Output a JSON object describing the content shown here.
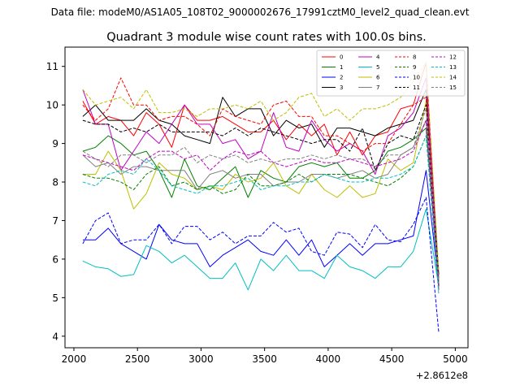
{
  "suptitle": "Data file: modeM0/AS1A05_108T02_9000002676_17991cztM0_level2_quad_clean.evt",
  "chart_data": {
    "type": "line",
    "title": "Quadrant 3 module wise count rates with 100.0s bins.",
    "xlabel": "",
    "ylabel": "",
    "x_offset_label": "+2.8612e8",
    "xlim": [
      1930,
      5100
    ],
    "ylim": [
      3.7,
      11.5
    ],
    "xticks": [
      2000,
      2500,
      3000,
      3500,
      4000,
      4500,
      5000
    ],
    "xtick_labels": [
      "2000",
      "2500",
      "3000",
      "3500",
      "4000",
      "4500",
      "5000"
    ],
    "yticks": [
      4,
      5,
      6,
      7,
      8,
      9,
      10,
      11
    ],
    "ytick_labels": [
      "4",
      "5",
      "6",
      "7",
      "8",
      "9",
      "10",
      "11"
    ],
    "legend_position": "top-right",
    "x": [
      2070,
      2170,
      2270,
      2370,
      2470,
      2570,
      2670,
      2770,
      2870,
      2970,
      3070,
      3170,
      3270,
      3370,
      3470,
      3570,
      3670,
      3770,
      3870,
      3970,
      4070,
      4170,
      4270,
      4370,
      4470,
      4570,
      4670,
      4770,
      4870
    ],
    "series": [
      {
        "name": "0",
        "color": "#ff0000",
        "dash": "solid",
        "values": [
          10.1,
          9.5,
          9.7,
          9.6,
          9.2,
          9.8,
          9.5,
          8.9,
          10.0,
          9.6,
          9.6,
          9.7,
          9.5,
          9.3,
          9.3,
          9.6,
          9.1,
          9.5,
          9.2,
          9.5,
          8.7,
          9.3,
          8.7,
          9.2,
          9.3,
          9.9,
          10.0,
          11.1,
          5.5
        ]
      },
      {
        "name": "1",
        "color": "#008000",
        "dash": "solid",
        "values": [
          8.8,
          8.9,
          9.2,
          9.0,
          8.7,
          8.8,
          8.3,
          7.6,
          8.6,
          7.9,
          7.8,
          8.1,
          8.4,
          7.6,
          8.3,
          8.1,
          8.0,
          8.4,
          8.5,
          8.4,
          8.5,
          8.1,
          8.1,
          8.3,
          8.8,
          8.9,
          9.1,
          9.4,
          5.4
        ]
      },
      {
        "name": "2",
        "color": "#0000ff",
        "dash": "solid",
        "values": [
          6.5,
          6.5,
          6.8,
          6.4,
          6.2,
          6.0,
          6.9,
          6.5,
          6.4,
          6.4,
          5.8,
          6.1,
          6.3,
          6.5,
          6.2,
          6.1,
          6.5,
          6.1,
          6.5,
          5.8,
          6.1,
          6.4,
          6.1,
          6.4,
          6.4,
          6.5,
          6.6,
          8.3,
          5.3
        ]
      },
      {
        "name": "3",
        "color": "#000000",
        "dash": "solid",
        "values": [
          9.7,
          10.0,
          9.6,
          9.6,
          9.6,
          9.9,
          9.6,
          9.5,
          9.2,
          9.1,
          9.0,
          10.2,
          9.7,
          9.9,
          9.9,
          9.2,
          9.6,
          9.4,
          9.5,
          8.9,
          9.4,
          9.4,
          9.3,
          9.2,
          9.4,
          9.5,
          9.6,
          10.4,
          5.6
        ]
      },
      {
        "name": "4",
        "color": "#c000c0",
        "dash": "solid",
        "values": [
          10.4,
          9.5,
          9.5,
          8.3,
          8.8,
          9.3,
          9.0,
          9.5,
          10.0,
          9.5,
          9.5,
          9.0,
          9.1,
          8.6,
          8.8,
          9.8,
          8.9,
          8.8,
          9.6,
          9.1,
          8.8,
          9.0,
          8.8,
          8.2,
          9.2,
          9.4,
          9.8,
          10.7,
          5.3
        ]
      },
      {
        "name": "5",
        "color": "#00bfbf",
        "dash": "solid",
        "values": [
          5.95,
          5.8,
          5.75,
          5.55,
          5.6,
          6.35,
          6.2,
          5.9,
          6.1,
          5.8,
          5.5,
          5.5,
          5.9,
          5.2,
          6.0,
          5.7,
          6.1,
          5.7,
          5.7,
          5.5,
          6.1,
          5.8,
          5.7,
          5.5,
          5.8,
          5.8,
          6.2,
          7.3,
          5.3
        ]
      },
      {
        "name": "6",
        "color": "#bfbf00",
        "dash": "solid",
        "values": [
          8.2,
          8.2,
          8.8,
          8.3,
          7.3,
          7.7,
          8.5,
          8.2,
          8.1,
          7.8,
          7.9,
          7.8,
          8.2,
          8.0,
          8.1,
          8.5,
          7.9,
          7.7,
          8.2,
          7.8,
          7.6,
          7.9,
          7.6,
          7.7,
          8.6,
          8.3,
          8.5,
          10.1,
          5.3
        ]
      },
      {
        "name": "7",
        "color": "#808080",
        "dash": "solid",
        "values": [
          8.7,
          8.4,
          8.5,
          8.2,
          8.4,
          8.4,
          8.3,
          8.3,
          8.3,
          7.8,
          8.2,
          8.3,
          8.1,
          8.2,
          8.2,
          7.9,
          8.0,
          8.0,
          8.2,
          8.2,
          8.1,
          8.2,
          8.3,
          8.1,
          8.2,
          8.7,
          8.9,
          9.6,
          5.4
        ]
      },
      {
        "name": "8",
        "color": "#ff0000",
        "dash": "dashed",
        "values": [
          10.0,
          9.6,
          9.9,
          10.7,
          10.0,
          10.0,
          9.6,
          9.7,
          9.7,
          9.5,
          9.2,
          9.9,
          9.7,
          9.6,
          9.5,
          10.0,
          10.1,
          9.7,
          9.7,
          9.2,
          9.2,
          9.0,
          8.8,
          9.0,
          9.0,
          9.5,
          10.0,
          10.2,
          5.2
        ]
      },
      {
        "name": "9",
        "color": "#008000",
        "dash": "dashed",
        "values": [
          8.2,
          8.1,
          8.1,
          8.0,
          7.8,
          8.2,
          8.4,
          7.9,
          8.0,
          7.8,
          7.9,
          7.7,
          7.8,
          8.2,
          7.9,
          7.9,
          8.0,
          8.2,
          8.0,
          8.2,
          8.2,
          8.2,
          8.1,
          8.0,
          7.9,
          8.1,
          8.4,
          9.2,
          5.2
        ]
      },
      {
        "name": "10",
        "color": "#0000ff",
        "dash": "dashed",
        "values": [
          6.4,
          7.0,
          7.2,
          6.4,
          6.5,
          6.5,
          6.9,
          6.4,
          6.85,
          6.85,
          6.5,
          6.7,
          6.4,
          6.6,
          6.6,
          6.95,
          6.7,
          6.8,
          6.2,
          6.1,
          6.7,
          6.65,
          6.3,
          6.9,
          6.5,
          6.45,
          6.9,
          7.6,
          4.1
        ]
      },
      {
        "name": "11",
        "color": "#000000",
        "dash": "dashed",
        "values": [
          9.6,
          9.5,
          9.5,
          9.3,
          9.4,
          9.3,
          9.5,
          9.3,
          9.3,
          9.3,
          9.3,
          9.2,
          9.4,
          9.2,
          9.4,
          9.3,
          9.2,
          9.1,
          9.0,
          9.1,
          9.1,
          8.8,
          9.4,
          8.3,
          9.0,
          9.2,
          9.1,
          10.0,
          5.3
        ]
      },
      {
        "name": "12",
        "color": "#c000c0",
        "dash": "dashed",
        "values": [
          8.7,
          8.6,
          8.5,
          8.4,
          8.3,
          8.6,
          8.8,
          8.8,
          8.6,
          8.7,
          8.3,
          8.6,
          8.8,
          8.7,
          8.8,
          8.5,
          8.4,
          8.5,
          8.6,
          8.5,
          8.5,
          8.6,
          8.5,
          8.4,
          8.5,
          8.6,
          8.8,
          9.6,
          5.2
        ]
      },
      {
        "name": "13",
        "color": "#00bfbf",
        "dash": "dashed",
        "values": [
          8.0,
          7.9,
          8.2,
          8.3,
          8.2,
          8.6,
          8.3,
          7.9,
          7.8,
          7.7,
          7.9,
          7.9,
          8.0,
          8.1,
          7.8,
          7.9,
          7.9,
          8.0,
          8.0,
          8.2,
          8.1,
          8.0,
          8.0,
          8.1,
          8.1,
          8.2,
          8.4,
          9.2,
          5.1
        ]
      },
      {
        "name": "14",
        "color": "#bfbf00",
        "dash": "dashed",
        "values": [
          10.4,
          10.0,
          10.1,
          10.2,
          9.9,
          10.4,
          9.8,
          9.8,
          9.9,
          9.7,
          9.9,
          9.9,
          10.0,
          9.9,
          10.1,
          9.6,
          9.8,
          10.2,
          10.3,
          9.7,
          9.9,
          9.6,
          9.9,
          9.9,
          10.0,
          10.2,
          10.6,
          11.1,
          5.7
        ]
      },
      {
        "name": "15",
        "color": "#808080",
        "dash": "dashed",
        "values": [
          8.8,
          8.6,
          8.4,
          8.7,
          8.7,
          8.5,
          8.7,
          8.7,
          8.9,
          8.5,
          8.7,
          8.6,
          8.7,
          8.5,
          8.6,
          8.5,
          8.6,
          8.6,
          8.7,
          8.6,
          8.7,
          8.6,
          8.6,
          8.4,
          8.7,
          8.7,
          8.9,
          9.9,
          5.4
        ]
      }
    ]
  }
}
